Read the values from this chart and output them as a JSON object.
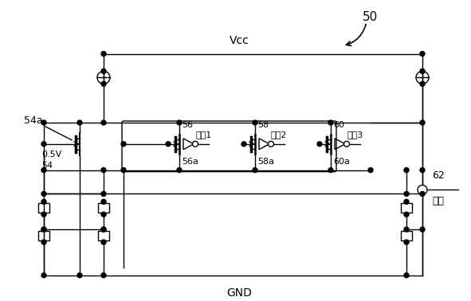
{
  "title_label": "50",
  "vcc_label": "Vcc",
  "gnd_label": "GND",
  "label_54a": "54a",
  "label_54": "54",
  "label_0_5V": "0.5V",
  "label_56": "56",
  "label_56a": "56a",
  "label_58": "58",
  "label_58a": "58a",
  "label_60": "60",
  "label_60a": "60a",
  "label_62": "62",
  "label_nyuryoku1": "入力1",
  "label_nyuryoku2": "入力2",
  "label_nyuryoku3": "入力3",
  "label_gosa": "誤差",
  "line_color": "#000000",
  "bg_color": "#ffffff",
  "fig_width": 5.91,
  "fig_height": 3.78,
  "dpi": 100
}
